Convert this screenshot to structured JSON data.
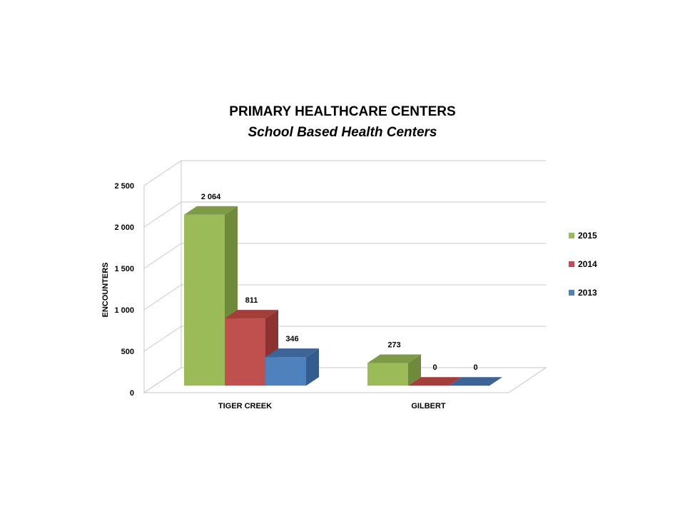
{
  "chart_data": {
    "type": "bar",
    "title": "PRIMARY HEALTHCARE CENTERS",
    "subtitle": "School Based Health Centers",
    "ylabel": "ENCOUNTERS",
    "xlabel": "",
    "categories": [
      "TIGER CREEK",
      "GILBERT"
    ],
    "series": [
      {
        "name": "2015",
        "values": [
          2064,
          273
        ],
        "labels": [
          "2 064",
          "273"
        ],
        "color": "#9BBB59",
        "side": "#6F8A3A",
        "top": "#7F9A47"
      },
      {
        "name": "2014",
        "values": [
          811,
          0
        ],
        "labels": [
          "811",
          "0"
        ],
        "color": "#C0504D",
        "side": "#8C3331",
        "top": "#A33E3B"
      },
      {
        "name": "2013",
        "values": [
          346,
          0
        ],
        "labels": [
          "346",
          "0"
        ],
        "color": "#4F81BD",
        "side": "#345D8F",
        "top": "#3D6496"
      }
    ],
    "yticks": [
      "0",
      "500",
      "1 000",
      "1 500",
      "2 000",
      "2 500"
    ],
    "ytick_values": [
      0,
      500,
      1000,
      1500,
      2000,
      2500
    ],
    "ylim": [
      0,
      2500
    ],
    "grid": true,
    "legend_position": "right"
  }
}
